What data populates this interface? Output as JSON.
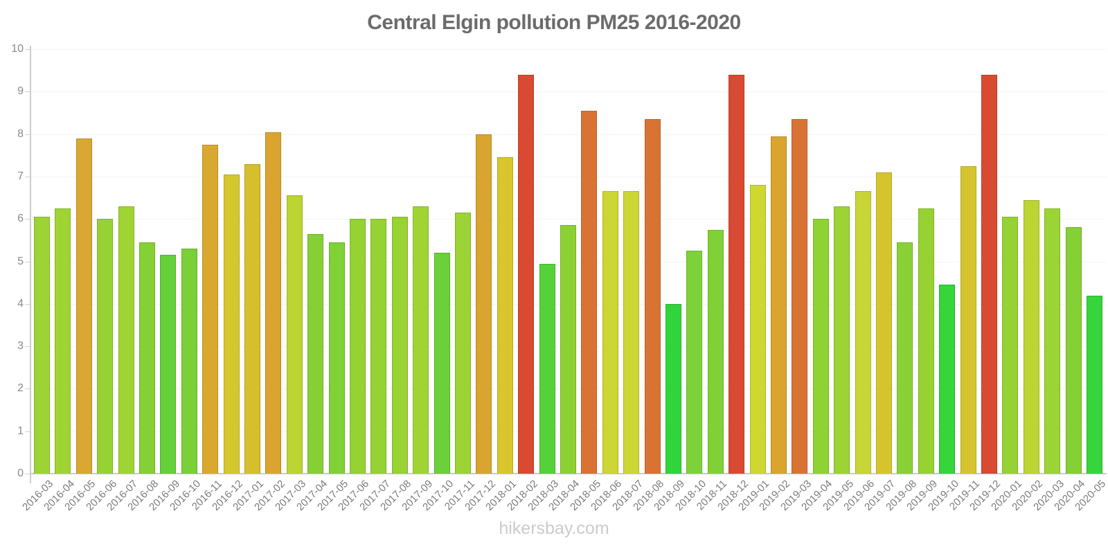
{
  "watermark": "hikersbay.com",
  "chart_data": {
    "type": "bar",
    "title": "Central Elgin pollution PM25 2016-2020",
    "xlabel": "",
    "ylabel": "",
    "ylim": [
      0,
      10
    ],
    "yticks": [
      0,
      1,
      2,
      3,
      4,
      5,
      6,
      7,
      8,
      9,
      10
    ],
    "grid": true,
    "legend": "none",
    "categories": [
      "2016-03",
      "2016-04",
      "2016-05",
      "2016-06",
      "2016-07",
      "2016-08",
      "2016-09",
      "2016-10",
      "2016-11",
      "2016-12",
      "2017-01",
      "2017-02",
      "2017-03",
      "2017-04",
      "2017-05",
      "2017-06",
      "2017-07",
      "2017-08",
      "2017-09",
      "2017-10",
      "2017-11",
      "2017-12",
      "2018-01",
      "2018-02",
      "2018-03",
      "2018-04",
      "2018-05",
      "2018-06",
      "2018-07",
      "2018-08",
      "2018-09",
      "2018-10",
      "2018-11",
      "2018-12",
      "2019-01",
      "2019-02",
      "2019-03",
      "2019-04",
      "2019-05",
      "2019-06",
      "2019-07",
      "2019-08",
      "2019-09",
      "2019-10",
      "2019-11",
      "2019-12",
      "2020-01",
      "2020-02",
      "2020-03",
      "2020-04",
      "2020-05"
    ],
    "values": [
      6.05,
      6.25,
      7.9,
      6.0,
      6.3,
      5.45,
      5.15,
      5.3,
      7.75,
      7.05,
      7.3,
      8.05,
      6.55,
      5.65,
      5.45,
      6.0,
      6.0,
      6.05,
      6.3,
      5.2,
      6.15,
      8.0,
      7.45,
      9.4,
      4.95,
      5.85,
      8.55,
      6.65,
      6.65,
      8.35,
      4.0,
      5.25,
      5.75,
      9.4,
      6.8,
      7.95,
      8.35,
      6.0,
      6.3,
      6.65,
      7.1,
      5.45,
      6.25,
      4.45,
      7.25,
      9.4,
      6.05,
      6.45,
      6.25,
      5.8,
      4.2
    ],
    "bar_colors": [
      "#9CD335",
      "#A0D434",
      "#D9A833",
      "#97D233",
      "#A0D434",
      "#85D035",
      "#64D03A",
      "#79D037",
      "#D9A92F",
      "#D5C72E",
      "#D6BE2D",
      "#D9A42F",
      "#BCD532",
      "#85D035",
      "#80D136",
      "#95D233",
      "#95D233",
      "#98D233",
      "#A0D434",
      "#6BD039",
      "#9CD335",
      "#D9A42F",
      "#D9C62E",
      "#D84A31",
      "#55D23A",
      "#8CD134",
      "#D97334",
      "#CCD634",
      "#CCD634",
      "#D97334",
      "#30D53C",
      "#7DD23A",
      "#80D136",
      "#D84A31",
      "#CFD733",
      "#D9A52F",
      "#D97334",
      "#8FD233",
      "#9CD335",
      "#C8D536",
      "#D6C42F",
      "#89D136",
      "#97D233",
      "#35D53B",
      "#D6C42F",
      "#D84A31",
      "#97D233",
      "#BCD532",
      "#9CD335",
      "#85D035",
      "#35D53B"
    ]
  }
}
